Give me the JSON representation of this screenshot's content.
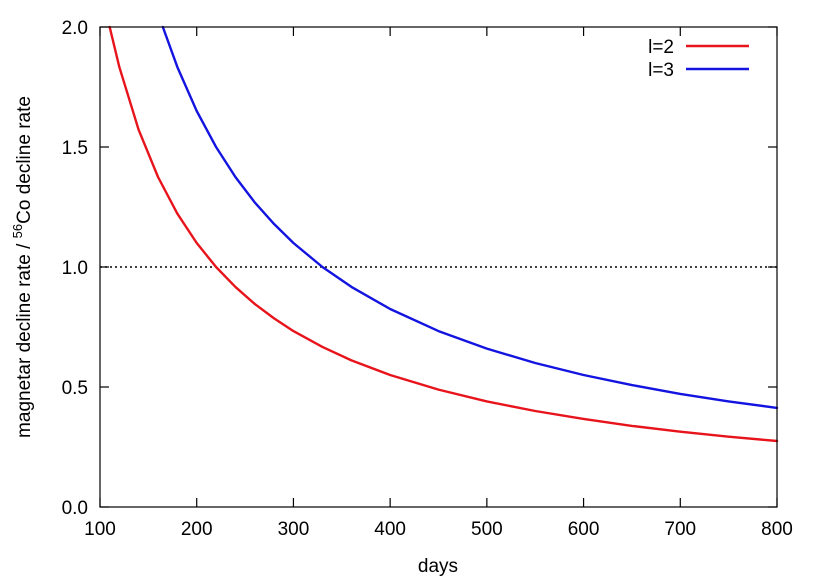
{
  "chart_data": {
    "type": "line",
    "xlabel": "days",
    "ylabel": {
      "prefix": "magnetar decline rate / ",
      "superscript": "56",
      "suffix": "Co decline rate"
    },
    "xlim": [
      100,
      800
    ],
    "ylim": [
      0.0,
      2.0
    ],
    "x_ticks": [
      "100",
      "200",
      "300",
      "400",
      "500",
      "600",
      "700",
      "800"
    ],
    "y_ticks": [
      "0.0",
      "0.5",
      "1.0",
      "1.5",
      "2.0"
    ],
    "grid": false,
    "legend_position": "top-right",
    "reference_line": {
      "y": 1.0,
      "style": "dotted",
      "color": "#000000"
    },
    "series": [
      {
        "name": "l=2",
        "color": "#e8141c",
        "x": [
          110,
          120,
          140,
          160,
          180,
          200,
          220,
          240,
          260,
          280,
          300,
          330,
          360,
          400,
          450,
          500,
          550,
          600,
          650,
          700,
          750,
          800
        ],
        "y": [
          2.0,
          1.833,
          1.571,
          1.375,
          1.222,
          1.1,
          1.0,
          0.917,
          0.846,
          0.786,
          0.733,
          0.667,
          0.611,
          0.55,
          0.489,
          0.44,
          0.4,
          0.367,
          0.338,
          0.314,
          0.293,
          0.275
        ]
      },
      {
        "name": "l=3",
        "color": "#1414e0",
        "x": [
          165,
          180,
          200,
          220,
          240,
          260,
          280,
          300,
          330,
          360,
          400,
          450,
          500,
          550,
          600,
          650,
          700,
          750,
          800
        ],
        "y": [
          2.0,
          1.833,
          1.65,
          1.5,
          1.375,
          1.269,
          1.179,
          1.1,
          1.0,
          0.917,
          0.825,
          0.733,
          0.66,
          0.6,
          0.55,
          0.508,
          0.471,
          0.44,
          0.413
        ]
      }
    ]
  }
}
